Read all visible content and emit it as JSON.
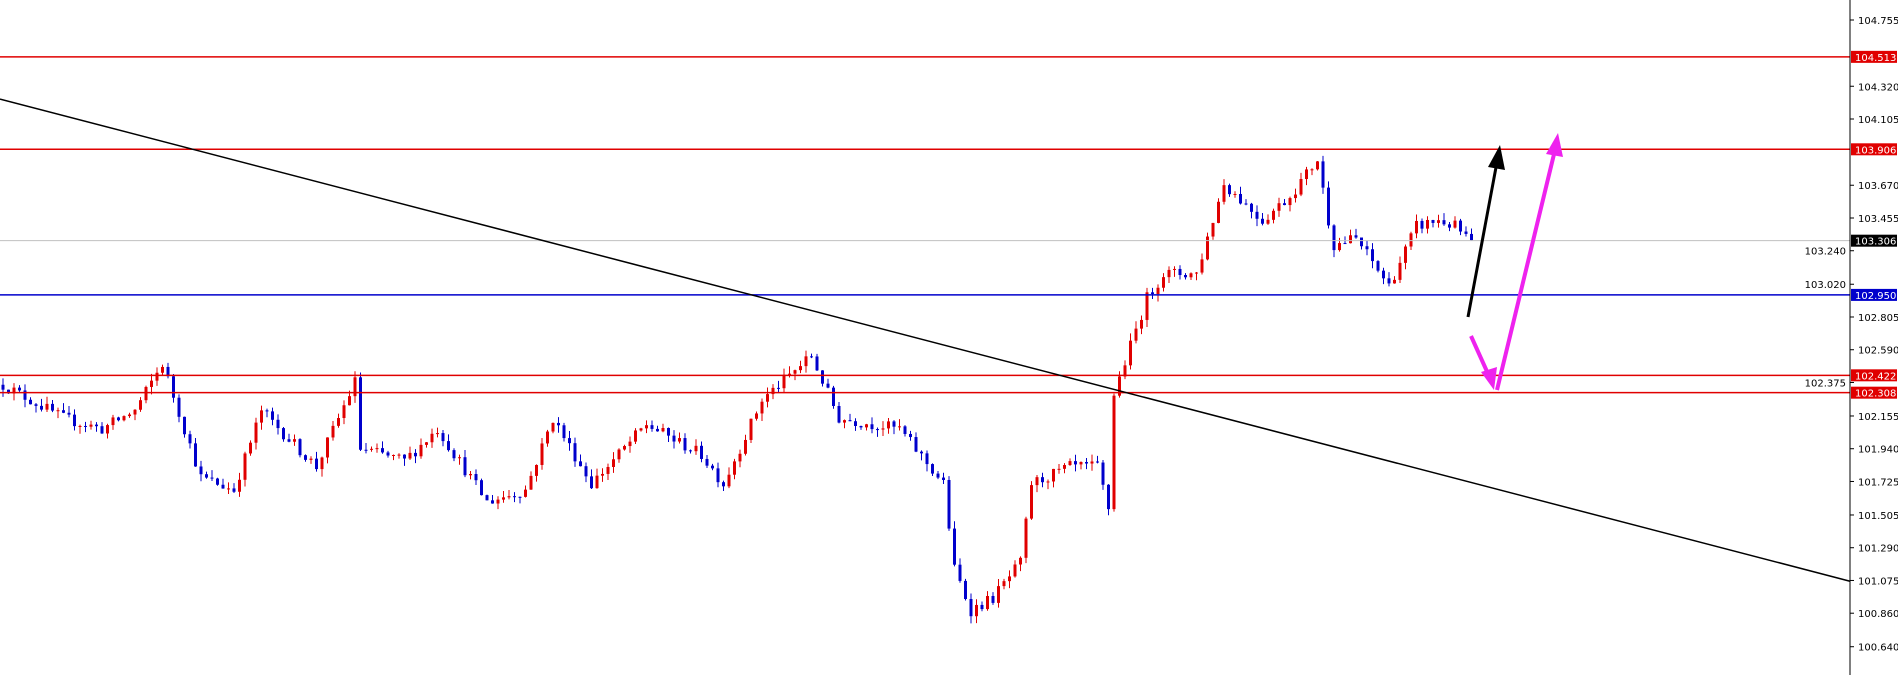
{
  "chart_data": {
    "type": "candlestick",
    "title": "",
    "xlabel": "",
    "ylabel": "",
    "ylim": [
      100.55,
      104.87
    ],
    "grid": false,
    "y_ticks": [
      "104.755",
      "104.320",
      "104.105",
      "103.670",
      "103.455",
      "103.240",
      "103.020",
      "102.805",
      "102.590",
      "102.375",
      "102.155",
      "101.940",
      "101.725",
      "101.505",
      "101.290",
      "101.075",
      "100.860",
      "100.640"
    ],
    "approx_close_path": [
      [
        0,
        102.36
      ],
      [
        11,
        102.14
      ],
      [
        18,
        102.07
      ],
      [
        24,
        102.19
      ],
      [
        29,
        102.5
      ],
      [
        36,
        101.75
      ],
      [
        42,
        101.67
      ],
      [
        47,
        102.19
      ],
      [
        57,
        101.82
      ],
      [
        64,
        102.38
      ],
      [
        65,
        101.94
      ],
      [
        73,
        101.86
      ],
      [
        79,
        102.07
      ],
      [
        88,
        101.59
      ],
      [
        95,
        101.67
      ],
      [
        100,
        102.14
      ],
      [
        107,
        101.71
      ],
      [
        117,
        102.1
      ],
      [
        127,
        101.9
      ],
      [
        131,
        101.71
      ],
      [
        138,
        102.26
      ],
      [
        147,
        102.55
      ],
      [
        152,
        102.14
      ],
      [
        163,
        102.07
      ],
      [
        171,
        101.71
      ],
      [
        173,
        101.15
      ],
      [
        176,
        100.88
      ],
      [
        180,
        100.96
      ],
      [
        185,
        101.19
      ],
      [
        187,
        101.71
      ],
      [
        194,
        101.82
      ],
      [
        199,
        101.82
      ],
      [
        201,
        101.55
      ],
      [
        202,
        102.3
      ],
      [
        208,
        102.93
      ],
      [
        211,
        103.09
      ],
      [
        217,
        103.09
      ],
      [
        222,
        103.68
      ],
      [
        229,
        103.44
      ],
      [
        234,
        103.6
      ],
      [
        239,
        103.84
      ],
      [
        241,
        103.44
      ],
      [
        242,
        103.28
      ],
      [
        246,
        103.32
      ],
      [
        252,
        103.01
      ],
      [
        257,
        103.4
      ],
      [
        261,
        103.44
      ],
      [
        264,
        103.4
      ],
      [
        267,
        103.29
      ]
    ],
    "price_lines": [
      {
        "label": "104.513",
        "price": 104.513,
        "color": "#e00000"
      },
      {
        "label": "103.906",
        "price": 103.906,
        "color": "#e00000"
      },
      {
        "label": "103.306",
        "price": 103.306,
        "color": "#000000",
        "line_color": "#c0c0c0"
      },
      {
        "label": "102.950",
        "price": 102.95,
        "color": "#0000cc"
      },
      {
        "label": "102.422",
        "price": 102.422,
        "color": "#e00000"
      },
      {
        "label": "102.308",
        "price": 102.308,
        "color": "#e00000"
      }
    ],
    "trendline": {
      "start_price": 104.236,
      "end_price": 101.07,
      "color": "#000000"
    },
    "candle_colors": {
      "up": "#e00000",
      "down": "#0000cc"
    },
    "annotations": [
      {
        "type": "arrow-up",
        "color": "#000000"
      },
      {
        "type": "arrow-down-then-up",
        "color": "#ee22ee"
      }
    ]
  }
}
